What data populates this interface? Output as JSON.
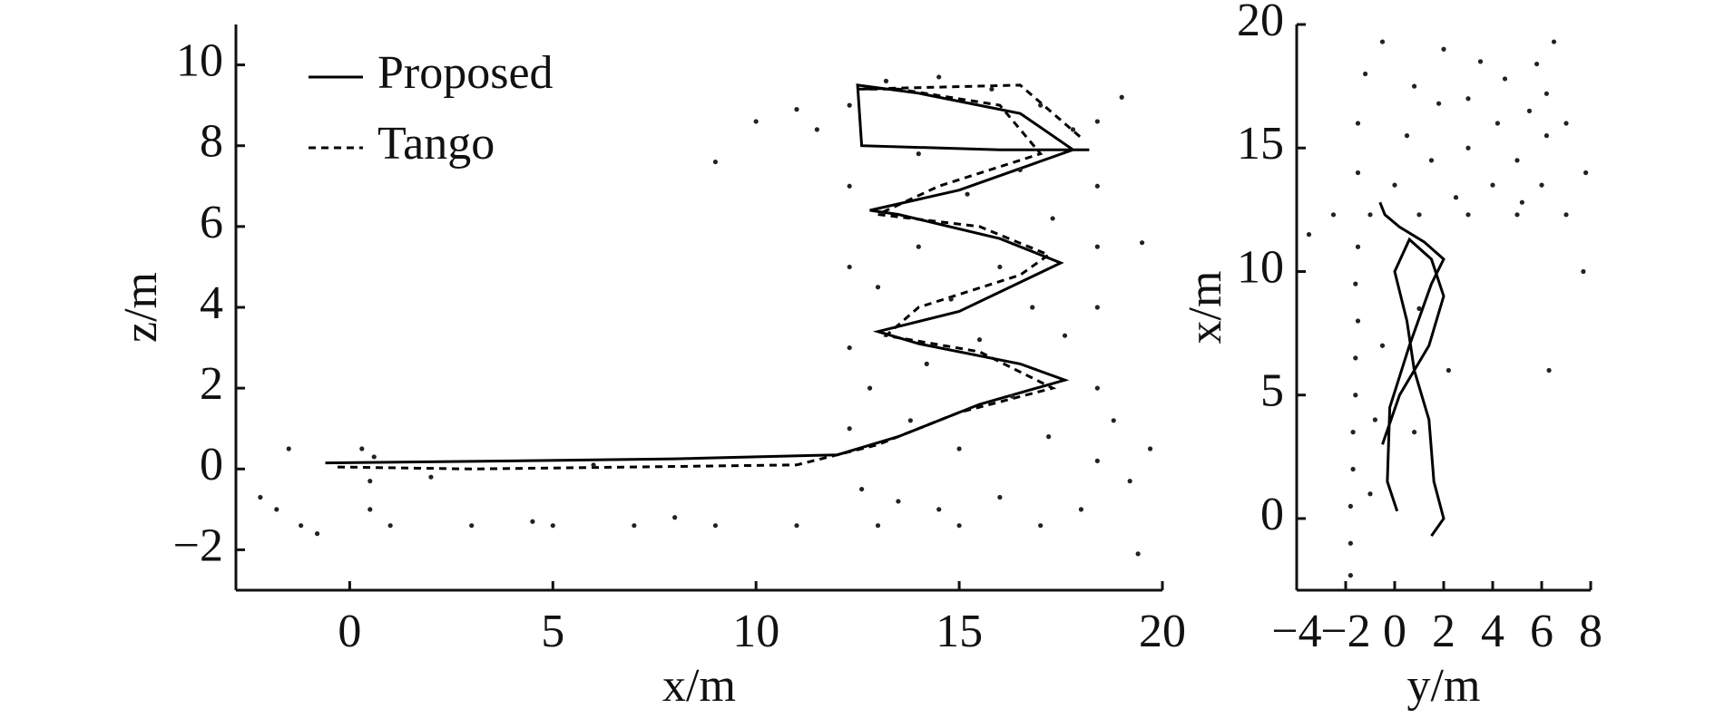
{
  "chart_data": [
    {
      "type": "line",
      "xlabel": "x/m",
      "ylabel": "z/m",
      "xlim": [
        -2.8,
        20
      ],
      "ylim": [
        -3,
        11
      ],
      "xticks": [
        0,
        5,
        10,
        15,
        20
      ],
      "yticks": [
        {
          "value": -2,
          "label": "−2"
        },
        0,
        2,
        4,
        6,
        8,
        10
      ],
      "legend": "upper left",
      "series": [
        {
          "name": "Proposed",
          "color": "#000000",
          "linestyle": "solid",
          "x": [
            -0.6,
            4,
            8,
            12,
            13.5,
            15.5,
            17.6,
            16.5,
            14,
            13,
            15,
            17.5,
            16,
            13.5,
            12.8,
            15,
            17.8,
            16.5,
            14,
            12.5,
            12.6,
            16,
            18.2
          ],
          "values": [
            0.15,
            0.2,
            0.25,
            0.35,
            0.8,
            1.6,
            2.2,
            2.6,
            3.1,
            3.4,
            3.9,
            5.1,
            5.7,
            6.3,
            6.4,
            6.9,
            7.9,
            8.8,
            9.3,
            9.5,
            8.0,
            7.9,
            7.9
          ]
        },
        {
          "name": "Tango",
          "color": "#000000",
          "linestyle": "dashed",
          "x": [
            -0.3,
            3,
            7,
            11,
            13,
            15,
            17.3,
            15.5,
            13.2,
            14,
            16.5,
            17.2,
            15.5,
            13,
            14.5,
            17,
            16,
            13.5,
            12.5,
            16.5,
            18
          ],
          "values": [
            0.05,
            0.0,
            0.05,
            0.1,
            0.6,
            1.4,
            2.0,
            2.9,
            3.3,
            4.0,
            4.8,
            5.3,
            6.0,
            6.3,
            7.0,
            7.8,
            9.0,
            9.4,
            9.4,
            9.5,
            8.2
          ]
        },
        {
          "type": "scatter",
          "color": "#222222",
          "x": [
            -2.2,
            -1.8,
            -1.5,
            -1.2,
            -0.8,
            0.3,
            0.5,
            0.5,
            0.6,
            1,
            2,
            3,
            4.5,
            5,
            6,
            7,
            8,
            9,
            9,
            10,
            11,
            11,
            11.5,
            12.3,
            12.3,
            12.3,
            12.3,
            12.3,
            12.6,
            12.8,
            13,
            13,
            13.2,
            13.5,
            13.8,
            14,
            14,
            14.2,
            14.5,
            14.5,
            14.8,
            15,
            15,
            15.2,
            15.5,
            15.8,
            16,
            16,
            16.3,
            16.5,
            16.8,
            17,
            17,
            17.2,
            17.3,
            17.6,
            17.8,
            18,
            18.4,
            18.4,
            18.4,
            18.4,
            18.4,
            18.4,
            18.8,
            19,
            19.2,
            19.4,
            19.5,
            19.7
          ],
          "values": [
            -0.7,
            -1.0,
            0.5,
            -1.4,
            -1.6,
            0.5,
            -0.3,
            -1.0,
            0.3,
            -1.4,
            -0.2,
            -1.4,
            -1.3,
            -1.4,
            0.1,
            -1.4,
            -1.2,
            -1.4,
            7.6,
            8.6,
            -1.4,
            8.9,
            8.4,
            1,
            3,
            5,
            7,
            9,
            -0.5,
            2,
            -1.4,
            4.5,
            9.6,
            -0.8,
            1.2,
            5.5,
            7.8,
            2.6,
            -1.0,
            9.7,
            4.2,
            -1.4,
            0.5,
            6.8,
            3.2,
            9.4,
            -0.7,
            5.0,
            1.8,
            7.4,
            4.0,
            -1.4,
            9.0,
            0.8,
            6.2,
            3.3,
            8.4,
            -1.0,
            0.2,
            2,
            4,
            5.5,
            7,
            8.6,
            1.2,
            9.2,
            -0.3,
            -2.1,
            5.6,
            0.5
          ]
        }
      ]
    },
    {
      "type": "line",
      "xlabel": "y/m",
      "ylabel": "x/m",
      "xlim": [
        -4,
        8
      ],
      "ylim": [
        -2.9,
        20
      ],
      "xticks": [
        {
          "value": -4,
          "label": "−4"
        },
        {
          "value": -2,
          "label": "−2"
        },
        0,
        2,
        4,
        6,
        8
      ],
      "yticks": [
        0,
        5,
        10,
        15,
        20
      ],
      "series": [
        {
          "color": "#000000",
          "linestyle": "solid",
          "x": [
            0.1,
            -0.3,
            -0.2,
            0.6,
            1.5,
            2.0,
            1.2,
            0.2,
            -0.4,
            -0.6
          ],
          "values": [
            0.3,
            1.5,
            4.5,
            7,
            9.5,
            10.5,
            11.2,
            11.8,
            12.3,
            12.8
          ]
        },
        {
          "color": "#000000",
          "linestyle": "solid",
          "x": [
            1.5,
            2.0,
            1.6,
            1.4,
            0.8,
            0.5,
            0.0,
            0.6,
            1.5,
            2.0,
            1.4,
            0.2,
            -0.5
          ],
          "values": [
            -0.7,
            0.0,
            1.5,
            4.0,
            6.0,
            8.0,
            10.0,
            11.3,
            10.5,
            9.0,
            7.0,
            5.0,
            3.0
          ]
        },
        {
          "type": "scatter",
          "color": "#222222",
          "x": [
            -1.8,
            -1.8,
            -1.8,
            -1.7,
            -1.7,
            -1.6,
            -1.6,
            -1.5,
            -1.6,
            -1.5,
            -1,
            -0.8,
            -0.5,
            0.8,
            1,
            2.2,
            -2.5,
            -3.5,
            -1,
            1,
            3,
            5,
            7,
            -1.5,
            -1.5,
            -1.2,
            -0.5,
            0,
            0.5,
            0.8,
            1.5,
            1.8,
            2,
            2.5,
            3,
            3,
            3.5,
            4,
            4.2,
            4.5,
            5,
            5.2,
            5.5,
            5.8,
            6,
            6.2,
            6.2,
            6.5,
            7,
            7.8,
            7.7,
            6.3
          ],
          "values": [
            -2.3,
            -1,
            0.5,
            2,
            3.5,
            5,
            6.5,
            8,
            9.5,
            11,
            1,
            4,
            7,
            3.5,
            8.5,
            6,
            12.3,
            11.5,
            12.3,
            12.3,
            12.3,
            12.3,
            12.3,
            14,
            16,
            18,
            19.3,
            13.5,
            15.5,
            17.5,
            14.5,
            16.8,
            19,
            13,
            15,
            17,
            18.5,
            13.5,
            16,
            17.8,
            14.5,
            12.8,
            16.5,
            18.4,
            13.5,
            15.5,
            17.2,
            19.3,
            16,
            14,
            10,
            6
          ]
        }
      ]
    }
  ]
}
